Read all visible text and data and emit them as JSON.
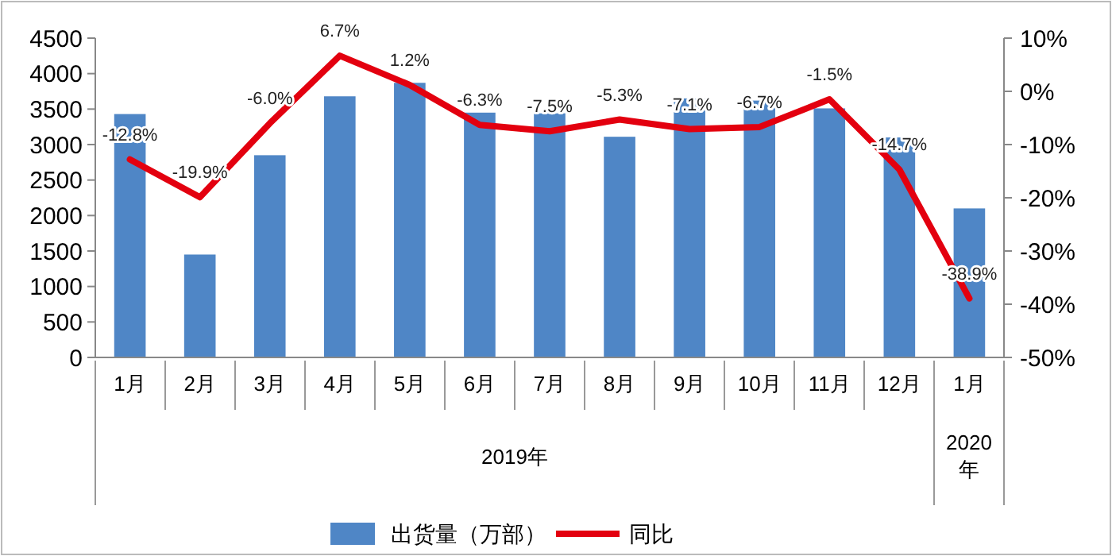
{
  "chart_data": {
    "type": "bar",
    "categories": [
      "1月",
      "2月",
      "3月",
      "4月",
      "5月",
      "6月",
      "7月",
      "8月",
      "9月",
      "10月",
      "11月",
      "12月",
      "1月"
    ],
    "series": [
      {
        "name": "出货量（万部）",
        "color": "#4f86c6",
        "values": [
          3430,
          1450,
          2850,
          3680,
          3870,
          3450,
          3440,
          3110,
          3650,
          3620,
          3510,
          3100,
          2100
        ]
      },
      {
        "name": "同比",
        "type": "line",
        "axis": "y2",
        "color": "#e3000f",
        "values": [
          -12.8,
          -19.9,
          -6.0,
          6.7,
          1.2,
          -6.3,
          -7.5,
          -5.3,
          -7.1,
          -6.7,
          -1.5,
          -14.7,
          -38.9
        ],
        "value_labels": [
          "-12.8%",
          "-19.9%",
          "-6.0%",
          "6.7%",
          "1.2%",
          "-6.3%",
          "-7.5%",
          "-5.3%",
          "-7.1%",
          "-6.7%",
          "-1.5%",
          "-14.7%",
          "-38.9%"
        ]
      }
    ],
    "ylim": [
      0,
      4500
    ],
    "yticks": [
      0,
      500,
      1000,
      1500,
      2000,
      2500,
      3000,
      3500,
      4000,
      4500
    ],
    "y2lim": [
      -50,
      10
    ],
    "y2ticks": [
      {
        "value": -50,
        "label": "-50%"
      },
      {
        "value": -40,
        "label": "-40%"
      },
      {
        "value": -30,
        "label": "-30%"
      },
      {
        "value": -20,
        "label": "-20%"
      },
      {
        "value": -10,
        "label": "-10%"
      },
      {
        "value": 0,
        "label": "0%"
      },
      {
        "value": 10,
        "label": "10%"
      }
    ],
    "annotations": [
      "2019年",
      "2020年"
    ],
    "legend": "bottom",
    "marker": "none",
    "line_style": "solid"
  }
}
